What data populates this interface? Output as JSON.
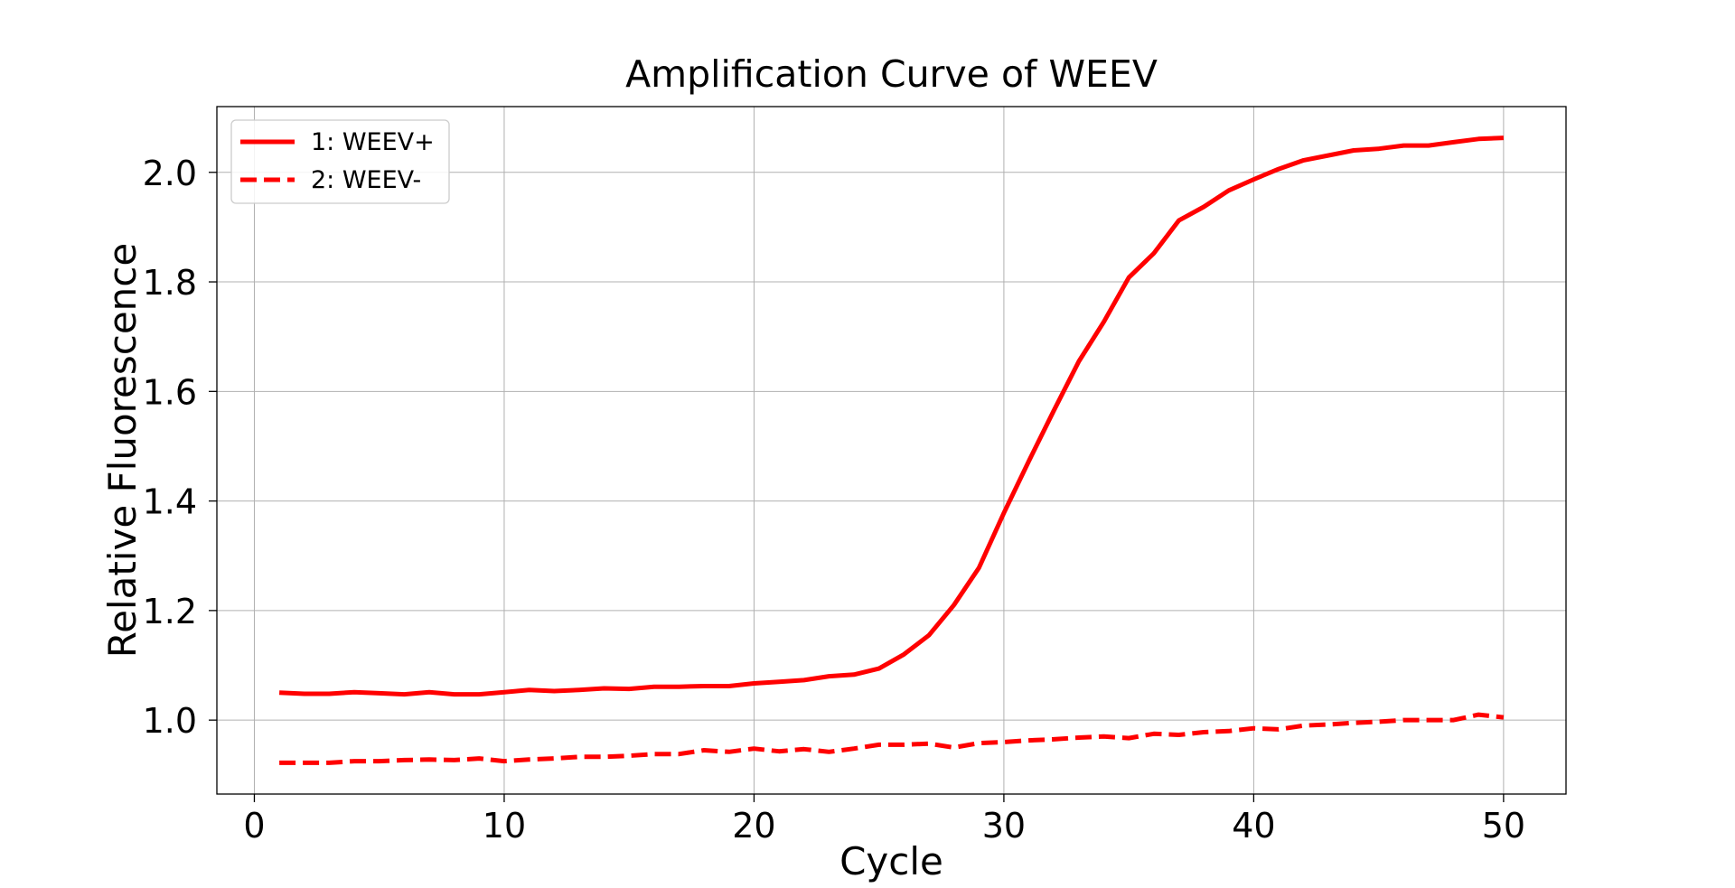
{
  "chart_data": {
    "type": "line",
    "title": "Amplification Curve of WEEV",
    "xlabel": "Cycle",
    "ylabel": "Relative Fluorescence",
    "xlim": [
      -1.5,
      52.5
    ],
    "ylim": [
      0.865,
      2.12
    ],
    "xticks": [
      0,
      10,
      20,
      30,
      40,
      50
    ],
    "xtick_labels": [
      "0",
      "10",
      "20",
      "30",
      "40",
      "50"
    ],
    "yticks": [
      1.0,
      1.2,
      1.4,
      1.6,
      1.8,
      2.0
    ],
    "ytick_labels": [
      "1.0",
      "1.2",
      "1.4",
      "1.6",
      "1.8",
      "2.0"
    ],
    "grid": true,
    "legend_position": "top-left",
    "color": "#ff0000",
    "x": [
      1,
      2,
      3,
      4,
      5,
      6,
      7,
      8,
      9,
      10,
      11,
      12,
      13,
      14,
      15,
      16,
      17,
      18,
      19,
      20,
      21,
      22,
      23,
      24,
      25,
      26,
      27,
      28,
      29,
      30,
      31,
      32,
      33,
      34,
      35,
      36,
      37,
      38,
      39,
      40,
      41,
      42,
      43,
      44,
      45,
      46,
      47,
      48,
      49,
      50
    ],
    "series": [
      {
        "name": "1: WEEV+",
        "style": "solid",
        "values": [
          1.05,
          1.048,
          1.048,
          1.051,
          1.049,
          1.047,
          1.051,
          1.047,
          1.047,
          1.051,
          1.055,
          1.053,
          1.055,
          1.058,
          1.057,
          1.061,
          1.061,
          1.062,
          1.062,
          1.067,
          1.07,
          1.073,
          1.08,
          1.083,
          1.094,
          1.12,
          1.155,
          1.21,
          1.278,
          1.378,
          1.473,
          1.565,
          1.655,
          1.727,
          1.808,
          1.852,
          1.912,
          1.937,
          1.967,
          1.987,
          2.006,
          2.022,
          2.031,
          2.04,
          2.043,
          2.049,
          2.049,
          2.055,
          2.061,
          2.063
        ]
      },
      {
        "name": "2: WEEV-",
        "style": "dashed",
        "values": [
          0.922,
          0.922,
          0.922,
          0.925,
          0.925,
          0.927,
          0.928,
          0.927,
          0.93,
          0.925,
          0.928,
          0.93,
          0.933,
          0.933,
          0.935,
          0.938,
          0.938,
          0.945,
          0.942,
          0.948,
          0.943,
          0.947,
          0.942,
          0.948,
          0.955,
          0.955,
          0.957,
          0.95,
          0.958,
          0.96,
          0.963,
          0.965,
          0.968,
          0.97,
          0.967,
          0.975,
          0.973,
          0.978,
          0.98,
          0.985,
          0.983,
          0.99,
          0.992,
          0.995,
          0.997,
          1.0,
          1.0,
          1.0,
          1.01,
          1.005
        ]
      }
    ]
  }
}
